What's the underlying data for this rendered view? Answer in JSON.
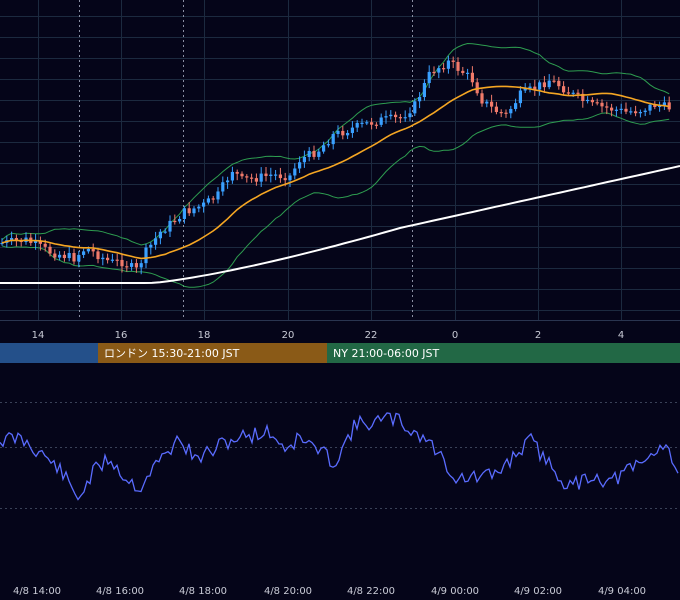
{
  "chart_data": {
    "type": "candlestick",
    "overlays": [
      {
        "name": "moving-average-short",
        "color": "#f5a623"
      },
      {
        "name": "moving-average-long",
        "color": "#ffffff"
      },
      {
        "name": "bollinger-bands",
        "color": "#2e9d50"
      }
    ],
    "colors": {
      "up": "#3aa0ff",
      "down": "#f07a6a",
      "grid": "#1c2a3f",
      "oscillator": "#5a6cff"
    },
    "price_ticks": [
      "14",
      "16",
      "18",
      "20",
      "22",
      "0",
      "2",
      "4"
    ],
    "sessions": [
      {
        "label": "",
        "color": "#24508a"
      },
      {
        "label": "ロンドン 15:30-21:00 JST",
        "color": "#8a5a17"
      },
      {
        "label": "NY 21:00-06:00 JST",
        "color": "#226845"
      }
    ],
    "oscillator_ticks": [
      "4/8 14:00",
      "4/8 16:00",
      "4/8 18:00",
      "4/8 20:00",
      "4/8 22:00",
      "4/9 00:00",
      "4/9 02:00",
      "4/9 04:00"
    ]
  }
}
